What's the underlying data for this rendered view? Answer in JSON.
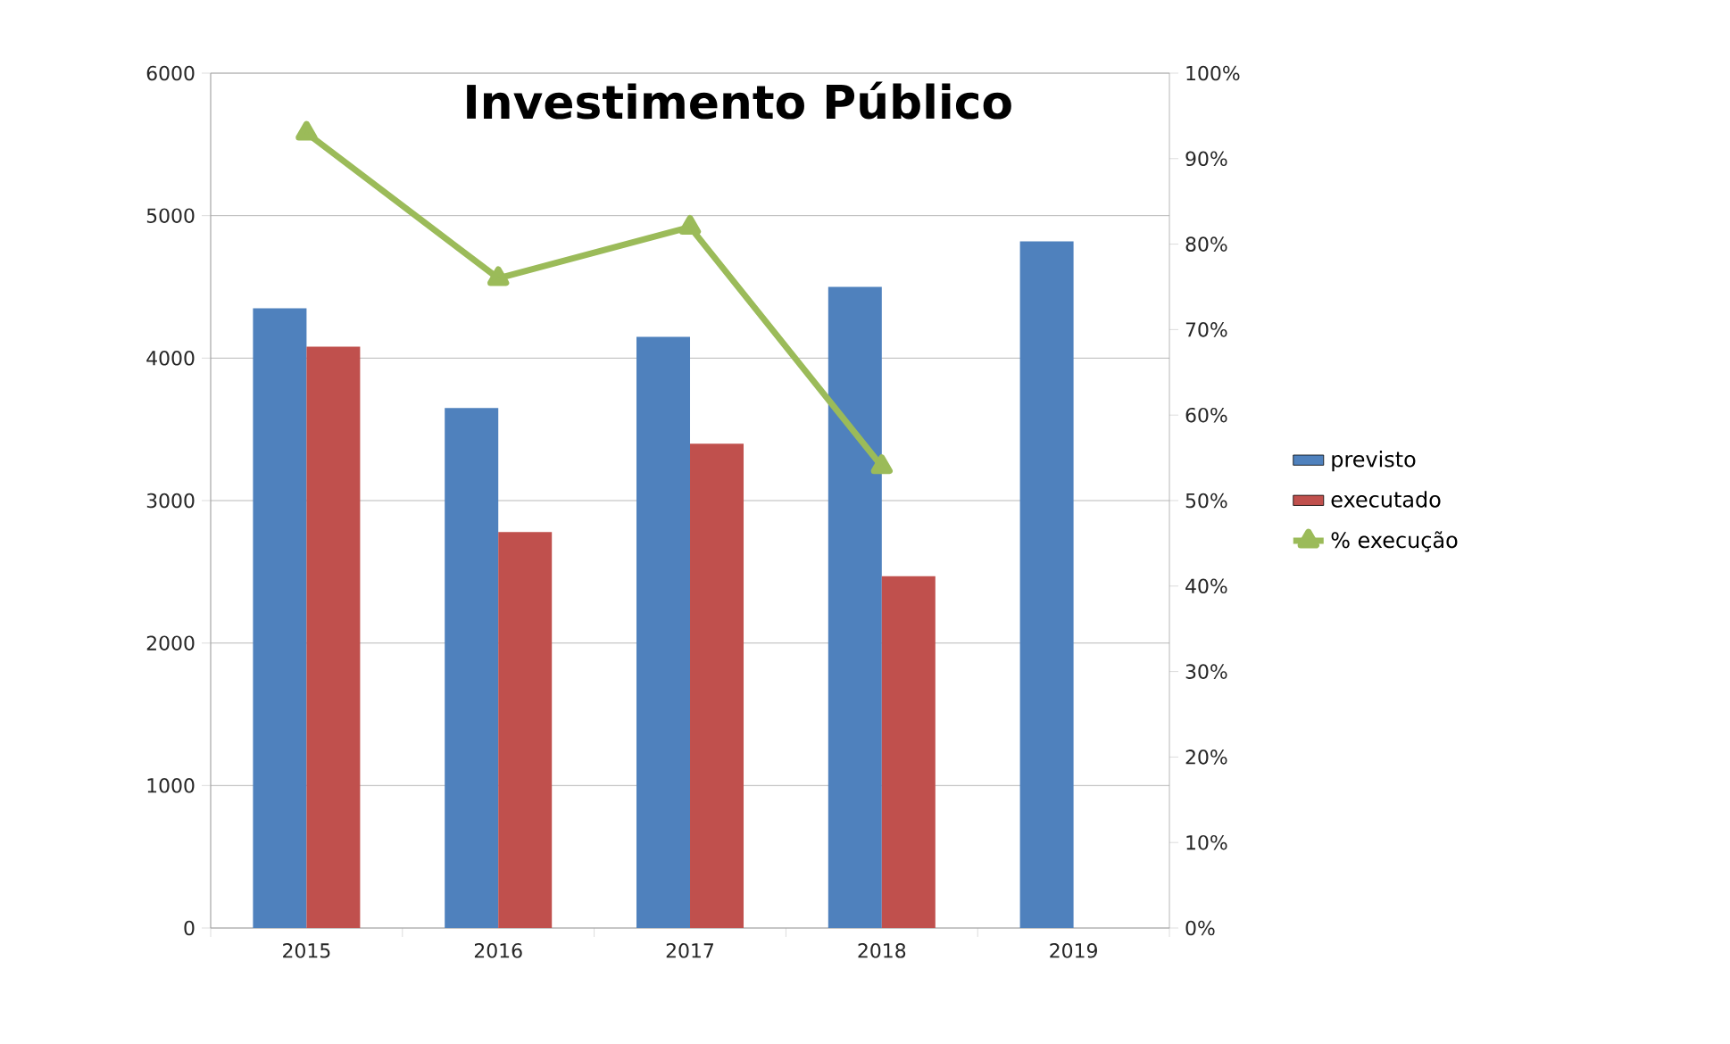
{
  "chart_data": {
    "type": "bar",
    "title": "Investimento Público",
    "categories": [
      "2015",
      "2016",
      "2017",
      "2018",
      "2019"
    ],
    "series": [
      {
        "name": "previsto",
        "color": "#4f81bd",
        "values": [
          4350,
          3650,
          4150,
          4500,
          4820
        ]
      },
      {
        "name": "executado",
        "color": "#c0504d",
        "values": [
          4080,
          2780,
          3400,
          2470,
          null
        ]
      },
      {
        "name": "% execução",
        "type": "line",
        "axis": "y2",
        "color": "#9bbb59",
        "marker": "triangle",
        "values": [
          93,
          76,
          82,
          54,
          null
        ]
      }
    ],
    "ylim": [
      0,
      6000
    ],
    "yticks": [
      0,
      1000,
      2000,
      3000,
      4000,
      5000,
      6000
    ],
    "y2lim": [
      0,
      100
    ],
    "y2ticks": [
      {
        "value": 0,
        "label": "0%"
      },
      {
        "value": 10,
        "label": "10%"
      },
      {
        "value": 20,
        "label": "20%"
      },
      {
        "value": 30,
        "label": "30%"
      },
      {
        "value": 40,
        "label": "40%"
      },
      {
        "value": 50,
        "label": "50%"
      },
      {
        "value": 60,
        "label": "60%"
      },
      {
        "value": 70,
        "label": "70%"
      },
      {
        "value": 80,
        "label": "80%"
      },
      {
        "value": 90,
        "label": "90%"
      },
      {
        "value": 100,
        "label": "100%"
      }
    ],
    "grid": "y",
    "legend": "right"
  }
}
